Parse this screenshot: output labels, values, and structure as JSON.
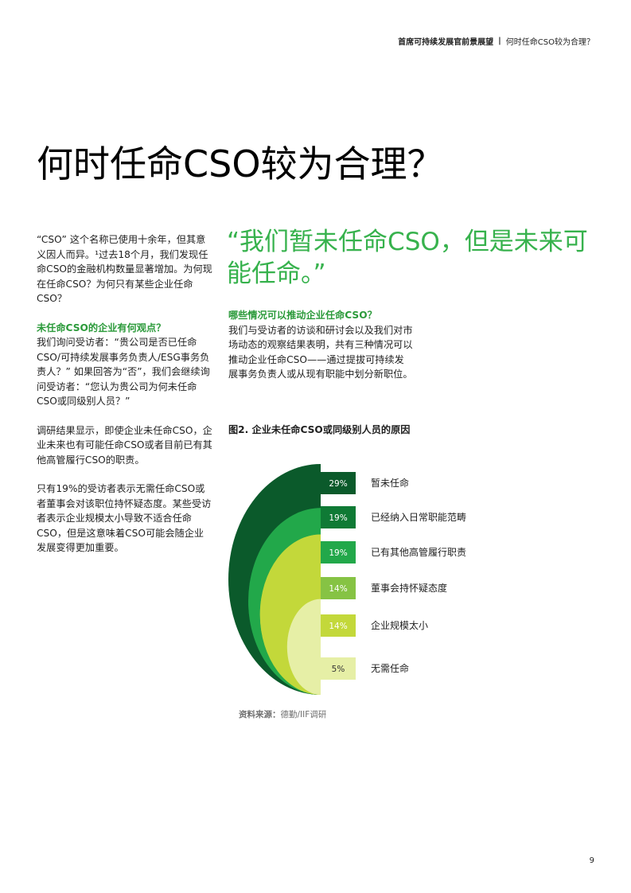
{
  "header": {
    "report": "首席可持续发展官前景展望",
    "separator": "|",
    "section": "何时任命CSO较为合理？"
  },
  "title": "何时任命CSO较为合理？",
  "left_column": {
    "intro": "“CSO” 这个名称已使用十余年，但其意义因人而异。¹过去18个月，我们发现任命CSO的金融机构数量显著增加。为何现在任命CSO？为何只有某些企业任命CSO？",
    "heading": "未任命CSO的企业有何观点？",
    "para2": "我们询问受访者：“贵公司是否已任命CSO/可持续发展事务负责人/ESG事务负责人？” 如果回答为“否”，我们会继续询问受访者：“您认为贵公司为何未任命CSO或同级别人员？”",
    "para3": "调研结果显示，即使企业未任命CSO，企业未来也有可能任命CSO或者目前已有其他高管履行CSO的职责。",
    "para4": "只有19%的受访者表示无需任命CSO或者董事会对该职位持怀疑态度。某些受访者表示企业规模太小导致不适合任命CSO，但是这意味着CSO可能会随企业发展变得更加重要。"
  },
  "quote": "“我们暂未任命CSO，但是未来可能任命。”",
  "right_column": {
    "heading": "哪些情况可以推动企业任命CSO？",
    "body": "我们与受访者的访谈和研讨会以及我们对市场动态的观察结果表明，共有三种情况可以推动企业任命CSO——通过提拔可持续发展事务负责人或从现有职能中划分新职位。"
  },
  "figure": {
    "title": "图2. 企业未任命CSO或同级别人员的原因",
    "source_label": "资料来源：",
    "source_text": "德勤/IIF调研"
  },
  "chart_data": {
    "type": "nested-semicircle",
    "categories": [
      "暂未任命",
      "已经纳入日常职能范畴",
      "已有其他高管履行职责",
      "董事会持怀疑态度",
      "企业规模太小",
      "无需任命"
    ],
    "values": [
      29,
      19,
      19,
      14,
      14,
      5
    ],
    "value_labels": [
      "29%",
      "19%",
      "19%",
      "14%",
      "14%",
      "5%"
    ],
    "colors": [
      "#0b5a2b",
      "#0f7a35",
      "#22a84a",
      "#86c344",
      "#c3d83a",
      "#e6efa6"
    ],
    "label_colors": [
      "#ffffff",
      "#ffffff",
      "#ffffff",
      "#ffffff",
      "#ffffff",
      "#333333"
    ]
  },
  "page_number": "9"
}
